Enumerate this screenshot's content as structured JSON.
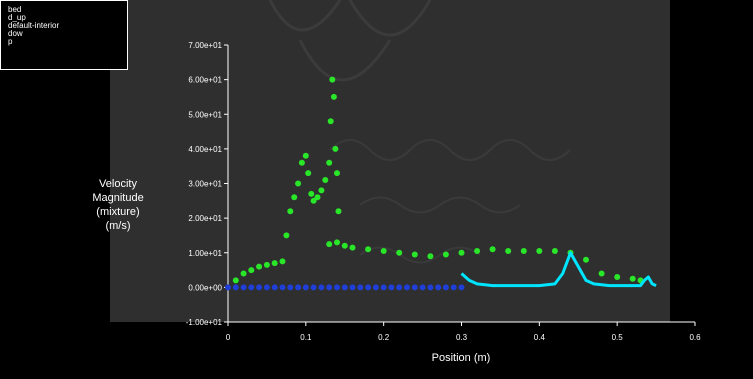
{
  "chart_data": {
    "type": "scatter",
    "title": "",
    "xlabel": "Position (m)",
    "ylabel_lines": [
      "Velocity",
      "Magnitude",
      "(mixture)",
      "(m/s)"
    ],
    "xlim": [
      0,
      0.6
    ],
    "ylim": [
      -10,
      70
    ],
    "x_ticks": [
      {
        "value": 0,
        "label": "0"
      },
      {
        "value": 0.1,
        "label": "0.1"
      },
      {
        "value": 0.2,
        "label": "0.2"
      },
      {
        "value": 0.3,
        "label": "0.3"
      },
      {
        "value": 0.4,
        "label": "0.4"
      },
      {
        "value": 0.5,
        "label": "0.5"
      },
      {
        "value": 0.6,
        "label": "0.6"
      }
    ],
    "y_ticks": [
      {
        "value": -10,
        "label": "-1.00e+01"
      },
      {
        "value": 0,
        "label": "0.00e+00"
      },
      {
        "value": 10,
        "label": "1.00e+01"
      },
      {
        "value": 20,
        "label": "2.00e+01"
      },
      {
        "value": 30,
        "label": "3.00e+01"
      },
      {
        "value": 40,
        "label": "4.00e+01"
      },
      {
        "value": 50,
        "label": "5.00e+01"
      },
      {
        "value": 60,
        "label": "6.00e+01"
      },
      {
        "value": 70,
        "label": "7.00e+01"
      }
    ],
    "grid": false,
    "legend_position": "top-left",
    "legend": [
      "bed",
      "d_up",
      "default-interior",
      "dow",
      "p"
    ],
    "background_color": "#2f2f2f",
    "series": [
      {
        "name": "bed",
        "color": "#1f3fd6",
        "style": "points",
        "points": [
          [
            0,
            0
          ],
          [
            0.01,
            0
          ],
          [
            0.02,
            0
          ],
          [
            0.03,
            0
          ],
          [
            0.04,
            0
          ],
          [
            0.05,
            0
          ],
          [
            0.06,
            0
          ],
          [
            0.07,
            0
          ],
          [
            0.08,
            0
          ],
          [
            0.09,
            0
          ],
          [
            0.1,
            0
          ],
          [
            0.11,
            0
          ],
          [
            0.12,
            0
          ],
          [
            0.13,
            0
          ],
          [
            0.14,
            0
          ],
          [
            0.15,
            0
          ],
          [
            0.16,
            0
          ],
          [
            0.17,
            0
          ],
          [
            0.18,
            0
          ],
          [
            0.19,
            0
          ],
          [
            0.2,
            0
          ],
          [
            0.21,
            0
          ],
          [
            0.22,
            0
          ],
          [
            0.23,
            0
          ],
          [
            0.24,
            0
          ],
          [
            0.25,
            0
          ],
          [
            0.26,
            0
          ],
          [
            0.27,
            0
          ],
          [
            0.28,
            0
          ],
          [
            0.29,
            0
          ],
          [
            0.3,
            0
          ]
        ]
      },
      {
        "name": "default-interior",
        "color": "#29e629",
        "style": "points",
        "points": [
          [
            0.01,
            2
          ],
          [
            0.02,
            4
          ],
          [
            0.03,
            5
          ],
          [
            0.04,
            6
          ],
          [
            0.05,
            6.5
          ],
          [
            0.06,
            7
          ],
          [
            0.07,
            7.5
          ],
          [
            0.075,
            15
          ],
          [
            0.08,
            22
          ],
          [
            0.085,
            26
          ],
          [
            0.09,
            30
          ],
          [
            0.095,
            36
          ],
          [
            0.1,
            38
          ],
          [
            0.103,
            33
          ],
          [
            0.107,
            27
          ],
          [
            0.11,
            25
          ],
          [
            0.115,
            26
          ],
          [
            0.12,
            28
          ],
          [
            0.125,
            31
          ],
          [
            0.13,
            36
          ],
          [
            0.132,
            48
          ],
          [
            0.134,
            60
          ],
          [
            0.136,
            55
          ],
          [
            0.138,
            40
          ],
          [
            0.14,
            33
          ],
          [
            0.142,
            22
          ],
          [
            0.13,
            12.5
          ],
          [
            0.14,
            13
          ],
          [
            0.15,
            12
          ],
          [
            0.16,
            11.5
          ],
          [
            0.18,
            11
          ],
          [
            0.2,
            10.5
          ],
          [
            0.22,
            10
          ],
          [
            0.24,
            9.5
          ],
          [
            0.26,
            9
          ],
          [
            0.28,
            9.5
          ],
          [
            0.3,
            10
          ],
          [
            0.32,
            10.5
          ],
          [
            0.34,
            11
          ],
          [
            0.36,
            10.5
          ],
          [
            0.38,
            10.5
          ],
          [
            0.4,
            10.5
          ],
          [
            0.42,
            10.5
          ],
          [
            0.44,
            10
          ],
          [
            0.46,
            8
          ],
          [
            0.48,
            4
          ],
          [
            0.5,
            3
          ],
          [
            0.52,
            2.5
          ],
          [
            0.53,
            2
          ]
        ]
      },
      {
        "name": "dow",
        "color": "#00e5ff",
        "style": "line",
        "points": [
          [
            0.3,
            4
          ],
          [
            0.305,
            3
          ],
          [
            0.31,
            2
          ],
          [
            0.32,
            1
          ],
          [
            0.34,
            0.5
          ],
          [
            0.36,
            0.5
          ],
          [
            0.38,
            0.5
          ],
          [
            0.4,
            0.5
          ],
          [
            0.42,
            1
          ],
          [
            0.43,
            4
          ],
          [
            0.44,
            10
          ],
          [
            0.45,
            6
          ],
          [
            0.46,
            2
          ],
          [
            0.47,
            1
          ],
          [
            0.49,
            0.5
          ],
          [
            0.51,
            0.5
          ],
          [
            0.53,
            0.5
          ],
          [
            0.535,
            2
          ],
          [
            0.54,
            3
          ],
          [
            0.545,
            1
          ],
          [
            0.55,
            0.5
          ]
        ]
      }
    ]
  }
}
